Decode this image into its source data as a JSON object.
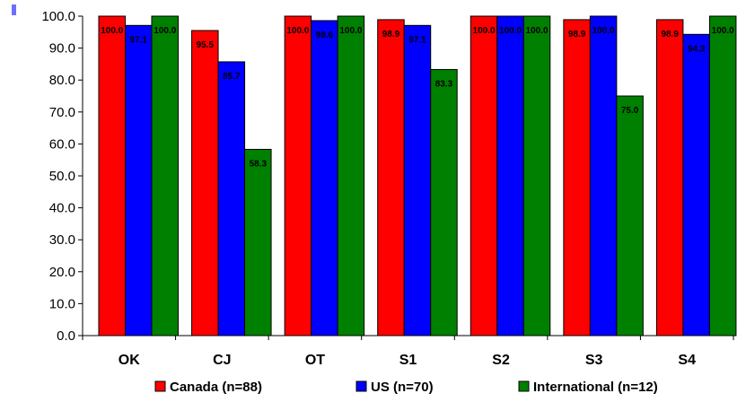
{
  "chart_data": {
    "type": "bar",
    "categories": [
      "OK",
      "CJ",
      "OT",
      "S1",
      "S2",
      "S3",
      "S4"
    ],
    "series": [
      {
        "name": "Canada (n=88)",
        "color": "#ff0000",
        "values": [
          100.0,
          95.5,
          100.0,
          98.9,
          100.0,
          98.9,
          98.9
        ],
        "labels": [
          "100.0",
          "95.5",
          "100.0",
          "98.9",
          "100.0",
          "98.9",
          "98.9"
        ]
      },
      {
        "name": "US (n=70)",
        "color": "#0000ff",
        "values": [
          97.1,
          85.7,
          98.6,
          97.1,
          100.0,
          100.0,
          94.3
        ],
        "labels": [
          "97.1",
          "85.7",
          "98.6",
          "97.1",
          "100.0",
          "100.0",
          "94.3"
        ]
      },
      {
        "name": "International (n=12)",
        "color": "#008000",
        "values": [
          100.0,
          58.3,
          100.0,
          83.3,
          100.0,
          75.0,
          100.0
        ],
        "labels": [
          "100.0",
          "58.3",
          "100.0",
          "83.3",
          "100.0",
          "75.0",
          "100.0"
        ]
      }
    ],
    "yticks": [
      "0.0",
      "10.0",
      "20.0",
      "30.0",
      "40.0",
      "50.0",
      "60.0",
      "70.0",
      "80.0",
      "90.0",
      "100.0"
    ],
    "ylim": [
      0,
      100
    ],
    "grid": false,
    "legend_position": "bottom",
    "title": "",
    "xlabel": "",
    "ylabel": ""
  }
}
